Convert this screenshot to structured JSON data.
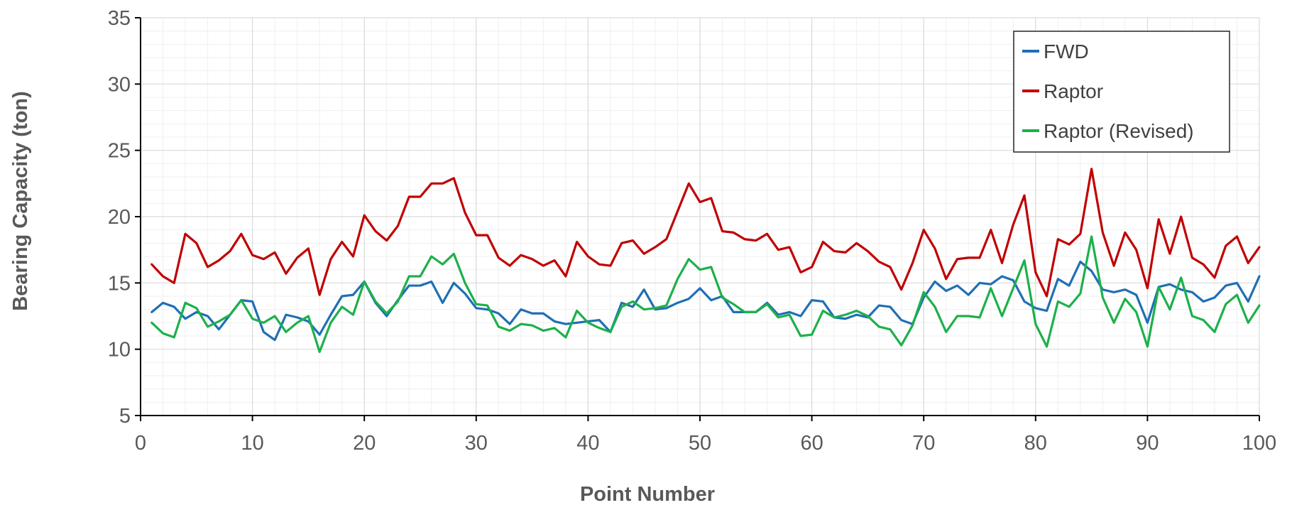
{
  "chart_data": {
    "type": "line",
    "title": "",
    "xlabel": "Point Number",
    "ylabel": "Bearing Capacity (ton)",
    "xlim": [
      0,
      100
    ],
    "ylim": [
      5,
      35
    ],
    "x_ticks": [
      0,
      10,
      20,
      30,
      40,
      50,
      60,
      70,
      80,
      90,
      100
    ],
    "y_ticks": [
      5,
      10,
      15,
      20,
      25,
      30,
      35
    ],
    "grid": true,
    "minor_grid": true,
    "legend_position": "top-right",
    "x": [
      1,
      2,
      3,
      4,
      5,
      6,
      7,
      8,
      9,
      10,
      11,
      12,
      13,
      14,
      15,
      16,
      17,
      18,
      19,
      20,
      21,
      22,
      23,
      24,
      25,
      26,
      27,
      28,
      29,
      30,
      31,
      32,
      33,
      34,
      35,
      36,
      37,
      38,
      39,
      40,
      41,
      42,
      43,
      44,
      45,
      46,
      47,
      48,
      49,
      50,
      51,
      52,
      53,
      54,
      55,
      56,
      57,
      58,
      59,
      60,
      61,
      62,
      63,
      64,
      65,
      66,
      67,
      68,
      69,
      70,
      71,
      72,
      73,
      74,
      75,
      76,
      77,
      78,
      79,
      80,
      81,
      82,
      83,
      84,
      85,
      86,
      87,
      88,
      89,
      90,
      91,
      92,
      93,
      94,
      95,
      96,
      97,
      98,
      99,
      100
    ],
    "series": [
      {
        "name": "FWD",
        "color": "#1f6fb5",
        "values": [
          12.8,
          13.5,
          13.2,
          12.3,
          12.8,
          12.5,
          11.5,
          12.6,
          13.7,
          13.6,
          11.3,
          10.7,
          12.6,
          12.4,
          12.1,
          11.1,
          12.6,
          14.0,
          14.1,
          15.1,
          13.5,
          12.5,
          13.7,
          14.8,
          14.8,
          15.1,
          13.5,
          15.0,
          14.2,
          13.1,
          13.0,
          12.7,
          11.9,
          13.0,
          12.7,
          12.7,
          12.1,
          11.9,
          12.0,
          12.1,
          12.2,
          11.3,
          13.5,
          13.2,
          14.5,
          13.0,
          13.1,
          13.5,
          13.8,
          14.6,
          13.7,
          14.0,
          12.8,
          12.8,
          12.8,
          13.5,
          12.6,
          12.8,
          12.5,
          13.7,
          13.6,
          12.4,
          12.3,
          12.6,
          12.4,
          13.3,
          13.2,
          12.2,
          11.9,
          13.9,
          15.1,
          14.4,
          14.8,
          14.1,
          15.0,
          14.9,
          15.5,
          15.2,
          13.6,
          13.1,
          12.9,
          15.3,
          14.8,
          16.6,
          15.9,
          14.5,
          14.3,
          14.5,
          14.1,
          12.0,
          14.7,
          14.9,
          14.5,
          14.3,
          13.6,
          13.9,
          14.8,
          15.0,
          13.6,
          15.5
        ]
      },
      {
        "name": "Raptor",
        "color": "#c00000",
        "values": [
          16.4,
          15.5,
          15.0,
          18.7,
          18.0,
          16.2,
          16.7,
          17.4,
          18.7,
          17.1,
          16.8,
          17.3,
          15.7,
          16.9,
          17.6,
          14.1,
          16.8,
          18.1,
          17.0,
          20.1,
          18.9,
          18.2,
          19.3,
          21.5,
          21.5,
          22.5,
          22.5,
          22.9,
          20.3,
          18.6,
          18.6,
          16.9,
          16.3,
          17.1,
          16.8,
          16.3,
          16.7,
          15.5,
          18.1,
          17.0,
          16.4,
          16.3,
          18.0,
          18.2,
          17.2,
          17.7,
          18.3,
          20.4,
          22.5,
          21.1,
          21.4,
          18.9,
          18.8,
          18.3,
          18.2,
          18.7,
          17.5,
          17.7,
          15.8,
          16.2,
          18.1,
          17.4,
          17.3,
          18.0,
          17.4,
          16.6,
          16.2,
          14.5,
          16.5,
          19.0,
          17.6,
          15.3,
          16.8,
          16.9,
          16.9,
          19.0,
          16.5,
          19.4,
          21.6,
          15.8,
          14.0,
          18.3,
          17.9,
          18.7,
          23.6,
          18.8,
          16.3,
          18.8,
          17.5,
          14.6,
          19.8,
          17.2,
          20.0,
          16.9,
          16.4,
          15.4,
          17.8,
          18.5,
          16.5,
          17.7
        ]
      },
      {
        "name": "Raptor (Revised)",
        "color": "#1db04b",
        "values": [
          12.0,
          11.2,
          10.9,
          13.5,
          13.1,
          11.7,
          12.1,
          12.6,
          13.7,
          12.3,
          12.0,
          12.5,
          11.3,
          12.0,
          12.5,
          9.8,
          12.0,
          13.2,
          12.6,
          15.1,
          13.6,
          12.7,
          13.6,
          15.5,
          15.5,
          17.0,
          16.4,
          17.2,
          15.0,
          13.4,
          13.3,
          11.7,
          11.4,
          11.9,
          11.8,
          11.4,
          11.6,
          10.9,
          12.9,
          12.0,
          11.6,
          11.3,
          13.2,
          13.6,
          13.0,
          13.1,
          13.3,
          15.3,
          16.8,
          16.0,
          16.2,
          13.9,
          13.4,
          12.8,
          12.8,
          13.4,
          12.4,
          12.6,
          11.0,
          11.1,
          12.9,
          12.4,
          12.6,
          12.9,
          12.5,
          11.7,
          11.5,
          10.3,
          11.8,
          14.3,
          13.2,
          11.3,
          12.5,
          12.5,
          12.4,
          14.6,
          12.5,
          14.6,
          16.7,
          11.9,
          10.2,
          13.6,
          13.2,
          14.2,
          18.5,
          13.9,
          12.0,
          13.8,
          12.8,
          10.2,
          14.7,
          13.0,
          15.4,
          12.5,
          12.2,
          11.3,
          13.4,
          14.1,
          12.0,
          13.3
        ]
      }
    ]
  }
}
